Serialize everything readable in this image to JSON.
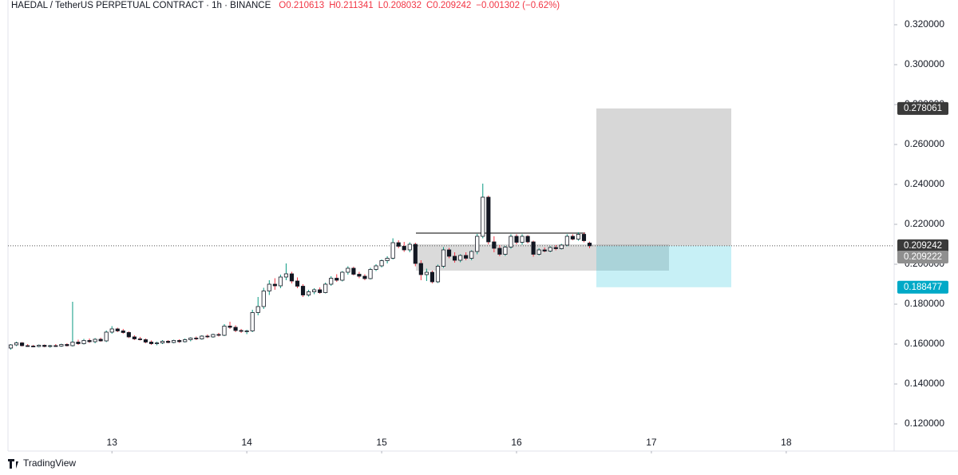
{
  "chart_data": {
    "type": "candlestick",
    "title": "HAEDAL / TetherUS PERPETUAL CONTRACT · 1h · BINANCE",
    "header_values": [
      "O0.210613",
      "H0.211341",
      "L0.208032",
      "C0.209242",
      "−0.001302 (−0.62%)"
    ],
    "brand": "TradingView",
    "up_color": "#089981",
    "down_color": "#f23645",
    "xlim": [
      -0.5,
      157.2
    ],
    "xticks": [
      {
        "value": 18,
        "label": "13"
      },
      {
        "value": 42,
        "label": "14"
      },
      {
        "value": 66,
        "label": "15"
      },
      {
        "value": 90,
        "label": "16"
      },
      {
        "value": 114,
        "label": "17"
      },
      {
        "value": 138,
        "label": "18"
      }
    ],
    "ylim": [
      0.1064,
      0.3324
    ],
    "yticks": [
      {
        "value": 0.12,
        "label": "0.120000"
      },
      {
        "value": 0.14,
        "label": "0.140000"
      },
      {
        "value": 0.16,
        "label": "0.160000"
      },
      {
        "value": 0.18,
        "label": "0.180000"
      },
      {
        "value": 0.2,
        "label": "0.200000"
      },
      {
        "value": 0.22,
        "label": "0.220000"
      },
      {
        "value": 0.24,
        "label": "0.240000"
      },
      {
        "value": 0.26,
        "label": "0.260000"
      },
      {
        "value": 0.28,
        "label": "0.280000"
      },
      {
        "value": 0.3,
        "label": "0.300000"
      },
      {
        "value": 0.32,
        "label": "0.320000"
      }
    ],
    "last_price": 0.209242,
    "position": {
      "target": 0.278061,
      "entry": 0.209222,
      "stop": 0.188477
    },
    "zone": [
      0.21,
      0.1968
    ],
    "level": 0.2156,
    "candles": [
      [
        0.158,
        0.16,
        0.1572,
        0.1596
      ],
      [
        0.1596,
        0.1612,
        0.159,
        0.1606
      ],
      [
        0.1606,
        0.161,
        0.1588,
        0.1592
      ],
      [
        0.1592,
        0.16,
        0.1586,
        0.159
      ],
      [
        0.159,
        0.1596,
        0.1584,
        0.1588
      ],
      [
        0.1588,
        0.1598,
        0.1584,
        0.1594
      ],
      [
        0.1594,
        0.1598,
        0.1584,
        0.1588
      ],
      [
        0.1588,
        0.1596,
        0.1582,
        0.1592
      ],
      [
        0.1592,
        0.16,
        0.1586,
        0.159
      ],
      [
        0.159,
        0.1602,
        0.1586,
        0.1598
      ],
      [
        0.1598,
        0.1604,
        0.1588,
        0.1592
      ],
      [
        0.1592,
        0.1812,
        0.1588,
        0.161
      ],
      [
        0.161,
        0.1622,
        0.1596,
        0.1602
      ],
      [
        0.1602,
        0.1626,
        0.1598,
        0.1618
      ],
      [
        0.1618,
        0.1628,
        0.1606,
        0.1612
      ],
      [
        0.1612,
        0.163,
        0.1604,
        0.1624
      ],
      [
        0.1624,
        0.1632,
        0.1612,
        0.1616
      ],
      [
        0.1616,
        0.1668,
        0.161,
        0.166
      ],
      [
        0.166,
        0.169,
        0.1652,
        0.1676
      ],
      [
        0.1676,
        0.1682,
        0.166,
        0.1666
      ],
      [
        0.1666,
        0.1676,
        0.1652,
        0.1658
      ],
      [
        0.1658,
        0.1664,
        0.163,
        0.1636
      ],
      [
        0.1636,
        0.1644,
        0.162,
        0.1626
      ],
      [
        0.1626,
        0.1636,
        0.1618,
        0.1622
      ],
      [
        0.1622,
        0.1628,
        0.1604,
        0.161
      ],
      [
        0.161,
        0.1618,
        0.1596,
        0.1602
      ],
      [
        0.1602,
        0.1612,
        0.1594,
        0.1606
      ],
      [
        0.1606,
        0.162,
        0.16,
        0.1614
      ],
      [
        0.1614,
        0.162,
        0.1604,
        0.1608
      ],
      [
        0.1608,
        0.1622,
        0.1604,
        0.1618
      ],
      [
        0.1618,
        0.1624,
        0.1606,
        0.1612
      ],
      [
        0.1612,
        0.1628,
        0.1608,
        0.1622
      ],
      [
        0.1622,
        0.1634,
        0.1614,
        0.163
      ],
      [
        0.163,
        0.1638,
        0.162,
        0.1626
      ],
      [
        0.1626,
        0.1644,
        0.1622,
        0.164
      ],
      [
        0.164,
        0.1648,
        0.163,
        0.1636
      ],
      [
        0.1636,
        0.1652,
        0.1632,
        0.1648
      ],
      [
        0.1648,
        0.1656,
        0.1638,
        0.1644
      ],
      [
        0.1644,
        0.17,
        0.164,
        0.169
      ],
      [
        0.169,
        0.1712,
        0.1676,
        0.1684
      ],
      [
        0.1684,
        0.1694,
        0.166,
        0.1668
      ],
      [
        0.1668,
        0.1676,
        0.1656,
        0.1664
      ],
      [
        0.1664,
        0.1672,
        0.165,
        0.1666
      ],
      [
        0.1666,
        0.1772,
        0.166,
        0.1758
      ],
      [
        0.1758,
        0.1836,
        0.1744,
        0.1788
      ],
      [
        0.1788,
        0.1882,
        0.1776,
        0.1866
      ],
      [
        0.1866,
        0.192,
        0.1846,
        0.19
      ],
      [
        0.19,
        0.193,
        0.1872,
        0.1892
      ],
      [
        0.1892,
        0.1948,
        0.188,
        0.1936
      ],
      [
        0.1936,
        0.2004,
        0.192,
        0.1952
      ],
      [
        0.1952,
        0.1962,
        0.1904,
        0.1916
      ],
      [
        0.1916,
        0.1934,
        0.188,
        0.189
      ],
      [
        0.189,
        0.19,
        0.1836,
        0.1846
      ],
      [
        0.1846,
        0.1872,
        0.1838,
        0.1862
      ],
      [
        0.1862,
        0.188,
        0.185,
        0.1872
      ],
      [
        0.1872,
        0.1884,
        0.1852,
        0.1858
      ],
      [
        0.1858,
        0.1908,
        0.1854,
        0.19
      ],
      [
        0.19,
        0.194,
        0.1892,
        0.193
      ],
      [
        0.193,
        0.195,
        0.1912,
        0.192
      ],
      [
        0.192,
        0.1966,
        0.1914,
        0.196
      ],
      [
        0.196,
        0.199,
        0.1948,
        0.198
      ],
      [
        0.198,
        0.1988,
        0.1944,
        0.195
      ],
      [
        0.195,
        0.1962,
        0.193,
        0.194
      ],
      [
        0.194,
        0.195,
        0.192,
        0.1928
      ],
      [
        0.1928,
        0.1982,
        0.1924,
        0.1974
      ],
      [
        0.1974,
        0.2,
        0.1966,
        0.1992
      ],
      [
        0.1992,
        0.2024,
        0.1984,
        0.2018
      ],
      [
        0.2018,
        0.204,
        0.2004,
        0.203
      ],
      [
        0.203,
        0.213,
        0.2024,
        0.2108
      ],
      [
        0.2108,
        0.212,
        0.208,
        0.209
      ],
      [
        0.209,
        0.2112,
        0.2062,
        0.2072
      ],
      [
        0.2072,
        0.211,
        0.206,
        0.21
      ],
      [
        0.21,
        0.2108,
        0.199,
        0.2004
      ],
      [
        0.2004,
        0.202,
        0.192,
        0.1948
      ],
      [
        0.1948,
        0.1978,
        0.1916,
        0.196
      ],
      [
        0.196,
        0.1968,
        0.1904,
        0.1912
      ],
      [
        0.1912,
        0.1998,
        0.1906,
        0.199
      ],
      [
        0.199,
        0.2086,
        0.1982,
        0.2072
      ],
      [
        0.2072,
        0.2082,
        0.203,
        0.204
      ],
      [
        0.204,
        0.206,
        0.2008,
        0.202
      ],
      [
        0.202,
        0.205,
        0.201,
        0.2044
      ],
      [
        0.2044,
        0.206,
        0.202,
        0.203
      ],
      [
        0.203,
        0.207,
        0.202,
        0.2064
      ],
      [
        0.2064,
        0.2152,
        0.205,
        0.214
      ],
      [
        0.214,
        0.2404,
        0.213,
        0.2336
      ],
      [
        0.2336,
        0.2344,
        0.21,
        0.2112
      ],
      [
        0.2112,
        0.214,
        0.206,
        0.208
      ],
      [
        0.208,
        0.2096,
        0.204,
        0.205
      ],
      [
        0.205,
        0.2092,
        0.2042,
        0.2086
      ],
      [
        0.2086,
        0.215,
        0.2078,
        0.214
      ],
      [
        0.214,
        0.215,
        0.21,
        0.211
      ],
      [
        0.211,
        0.215,
        0.2098,
        0.214
      ],
      [
        0.214,
        0.2146,
        0.2104,
        0.2112
      ],
      [
        0.2112,
        0.2118,
        0.2038,
        0.205
      ],
      [
        0.205,
        0.208,
        0.2044,
        0.2072
      ],
      [
        0.2072,
        0.2084,
        0.206,
        0.2066
      ],
      [
        0.2066,
        0.209,
        0.206,
        0.2084
      ],
      [
        0.2084,
        0.2096,
        0.207,
        0.2078
      ],
      [
        0.2078,
        0.2102,
        0.2074,
        0.2096
      ],
      [
        0.2096,
        0.215,
        0.209,
        0.214
      ],
      [
        0.214,
        0.215,
        0.212,
        0.2126
      ],
      [
        0.2126,
        0.216,
        0.2118,
        0.215
      ],
      [
        0.215,
        0.2158,
        0.211,
        0.2118
      ],
      [
        0.210613,
        0.211341,
        0.208032,
        0.209242
      ]
    ]
  }
}
